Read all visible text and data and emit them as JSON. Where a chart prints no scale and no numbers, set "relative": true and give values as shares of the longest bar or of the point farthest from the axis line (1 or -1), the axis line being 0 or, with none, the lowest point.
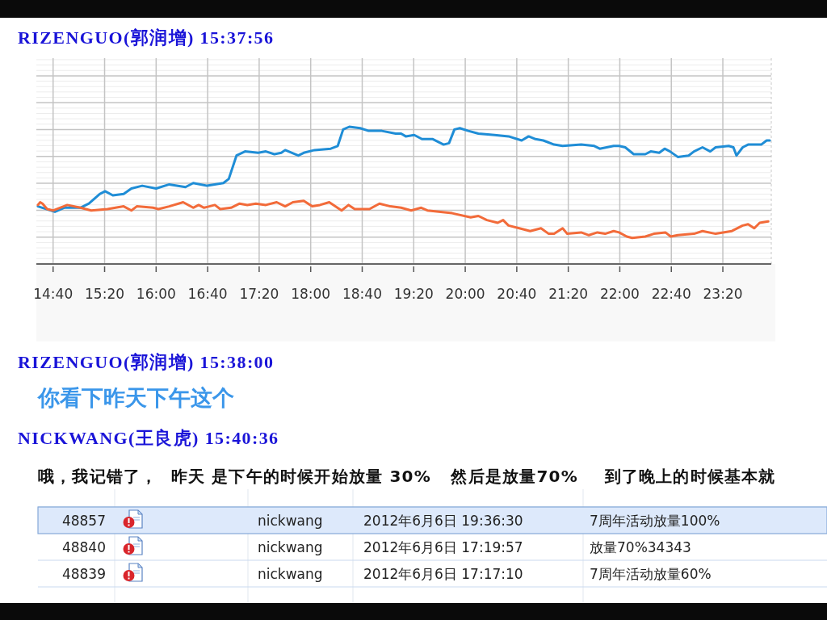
{
  "chart_data": [
    {
      "type": "line",
      "title": "RIZENGUO(郭润增) 15:37:56",
      "relative": true,
      "grid": true,
      "xlim": [
        14.45,
        23.96
      ],
      "xticks": [
        {
          "value": 14.6667,
          "label": "14:40"
        },
        {
          "value": 15.3333,
          "label": "15:20"
        },
        {
          "value": 16,
          "label": "16:00"
        },
        {
          "value": 16.6667,
          "label": "16:40"
        },
        {
          "value": 17.3333,
          "label": "17:20"
        },
        {
          "value": 18,
          "label": "18:00"
        },
        {
          "value": 18.6667,
          "label": "18:40"
        },
        {
          "value": 19.3333,
          "label": "19:20"
        },
        {
          "value": 20,
          "label": "20:00"
        },
        {
          "value": 20.6667,
          "label": "20:40"
        },
        {
          "value": 21.3333,
          "label": "21:20"
        },
        {
          "value": 22,
          "label": "22:00"
        },
        {
          "value": 22.6667,
          "label": "22:40"
        },
        {
          "value": 23.3333,
          "label": "23:20"
        }
      ],
      "series": [
        {
          "color": "#1f8dd6",
          "x": [
            14.47,
            14.69,
            14.81,
            15.02,
            15.13,
            15.27,
            15.34,
            15.44,
            15.58,
            15.68,
            15.82,
            16.0,
            16.17,
            16.38,
            16.48,
            16.66,
            16.87,
            16.94,
            17.04,
            17.15,
            17.32,
            17.42,
            17.53,
            17.62,
            17.67,
            17.84,
            17.91,
            18.05,
            18.26,
            18.35,
            18.42,
            18.5,
            18.64,
            18.75,
            18.92,
            19.1,
            19.17,
            19.23,
            19.34,
            19.44,
            19.58,
            19.72,
            19.79,
            19.86,
            19.93,
            20.04,
            20.17,
            20.38,
            20.56,
            20.73,
            20.82,
            20.91,
            21.01,
            21.15,
            21.26,
            21.5,
            21.67,
            21.74,
            21.92,
            21.99,
            22.07,
            22.18,
            22.33,
            22.4,
            22.51,
            22.58,
            22.65,
            22.75,
            22.89,
            22.96,
            23.07,
            23.17,
            23.24,
            23.41,
            23.47,
            23.51,
            23.59,
            23.66,
            23.83,
            23.9,
            23.94
          ],
          "values": [
            0.42,
            0.38,
            0.41,
            0.41,
            0.44,
            0.51,
            0.53,
            0.5,
            0.51,
            0.55,
            0.57,
            0.55,
            0.58,
            0.56,
            0.59,
            0.57,
            0.59,
            0.62,
            0.79,
            0.82,
            0.81,
            0.82,
            0.8,
            0.81,
            0.83,
            0.79,
            0.81,
            0.83,
            0.84,
            0.86,
            0.98,
            1.0,
            0.99,
            0.97,
            0.97,
            0.95,
            0.95,
            0.93,
            0.94,
            0.91,
            0.91,
            0.87,
            0.88,
            0.98,
            0.99,
            0.97,
            0.95,
            0.94,
            0.93,
            0.9,
            0.93,
            0.91,
            0.9,
            0.87,
            0.86,
            0.87,
            0.86,
            0.84,
            0.86,
            0.86,
            0.85,
            0.8,
            0.8,
            0.82,
            0.81,
            0.84,
            0.82,
            0.78,
            0.79,
            0.82,
            0.85,
            0.82,
            0.85,
            0.86,
            0.85,
            0.79,
            0.85,
            0.87,
            0.87,
            0.9,
            0.9
          ]
        },
        {
          "color": "#f26b3a",
          "x": [
            14.47,
            14.5,
            14.53,
            14.59,
            14.67,
            14.85,
            15.02,
            15.16,
            15.37,
            15.58,
            15.68,
            15.75,
            15.96,
            16.03,
            16.17,
            16.35,
            16.48,
            16.55,
            16.62,
            16.76,
            16.83,
            16.97,
            17.08,
            17.18,
            17.29,
            17.42,
            17.56,
            17.67,
            17.77,
            17.91,
            18.02,
            18.12,
            18.24,
            18.4,
            18.49,
            18.57,
            18.76,
            18.89,
            19.03,
            19.17,
            19.3,
            19.43,
            19.51,
            19.83,
            20.07,
            20.17,
            20.28,
            20.42,
            20.49,
            20.56,
            20.7,
            20.84,
            20.98,
            21.08,
            21.15,
            21.26,
            21.32,
            21.5,
            21.6,
            21.71,
            21.81,
            21.92,
            21.99,
            22.09,
            22.16,
            22.33,
            22.44,
            22.59,
            22.66,
            22.75,
            22.96,
            23.07,
            23.24,
            23.45,
            23.59,
            23.66,
            23.74,
            23.81,
            23.92
          ],
          "values": [
            0.43,
            0.45,
            0.44,
            0.4,
            0.39,
            0.43,
            0.41,
            0.39,
            0.4,
            0.42,
            0.39,
            0.42,
            0.41,
            0.4,
            0.42,
            0.45,
            0.41,
            0.43,
            0.41,
            0.43,
            0.4,
            0.41,
            0.44,
            0.43,
            0.44,
            0.43,
            0.45,
            0.42,
            0.45,
            0.46,
            0.42,
            0.43,
            0.45,
            0.39,
            0.43,
            0.4,
            0.4,
            0.44,
            0.42,
            0.41,
            0.39,
            0.41,
            0.39,
            0.37,
            0.34,
            0.35,
            0.32,
            0.3,
            0.32,
            0.28,
            0.26,
            0.24,
            0.26,
            0.22,
            0.22,
            0.26,
            0.22,
            0.23,
            0.21,
            0.23,
            0.22,
            0.24,
            0.23,
            0.2,
            0.19,
            0.2,
            0.22,
            0.23,
            0.2,
            0.21,
            0.22,
            0.24,
            0.22,
            0.24,
            0.28,
            0.29,
            0.26,
            0.3,
            0.31
          ]
        }
      ]
    },
    {
      "type": "other",
      "annotations": [
        "RIZENGUO(郭润增) 15:38:00",
        "你看下昨天下午这个",
        "NICKWANG(王良虎) 15:40:36",
        "哦，我记错了，  昨天 是下午的时候开始放量 30%   然后是放量70%    到了晚上的时候基本就",
        "48857",
        "nickwang",
        "2012年6月6日 19:36:30",
        "7周年活动放量100%",
        "48840",
        "nickwang",
        "2012年6月6日 17:19:57",
        "放量70%34343",
        "48839",
        "nickwang",
        "2012年6月6日 17:17:10",
        "7周年活动放量60%"
      ]
    }
  ]
}
